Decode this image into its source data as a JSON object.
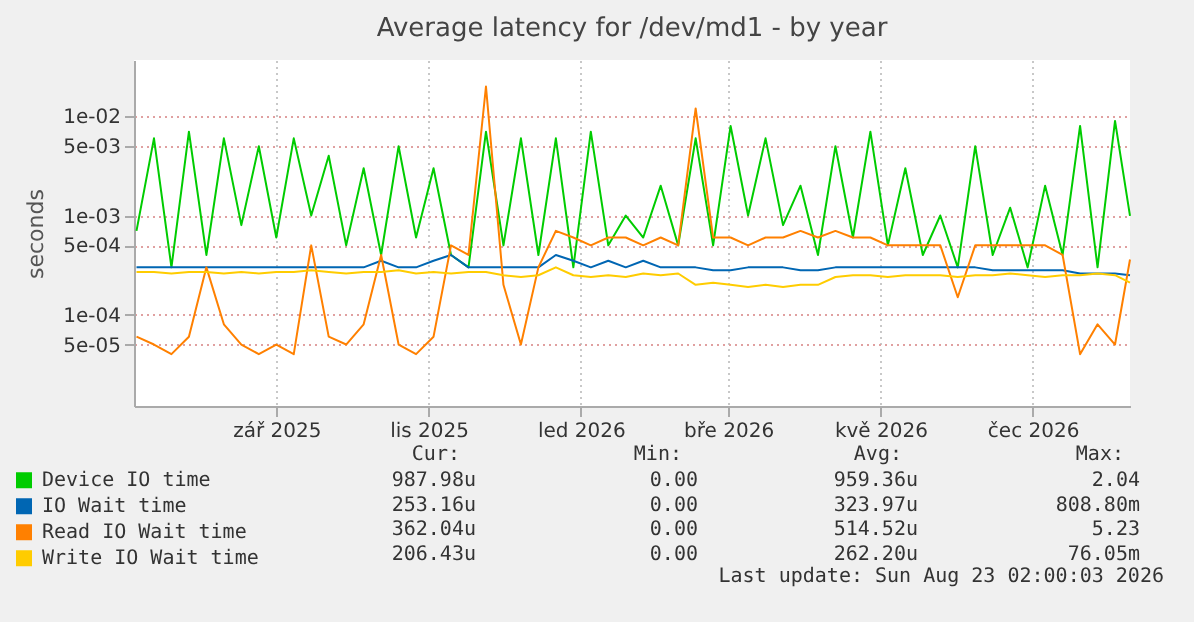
{
  "chart_data": {
    "type": "line",
    "title": "Average latency for /dev/md1 - by year",
    "ylabel": "seconds",
    "log": true,
    "grid": true,
    "legend": "bottom left",
    "xlim": [
      "2025-07-20",
      "2026-08-23"
    ],
    "xticks": [
      {
        "value": "2025-09-15",
        "label": "zář 2025"
      },
      {
        "value": "2025-11-15",
        "label": "lis 2025"
      },
      {
        "value": "2026-01-15",
        "label": "led 2026"
      },
      {
        "value": "2026-03-15",
        "label": "bře 2026"
      },
      {
        "value": "2026-05-15",
        "label": "kvě 2026"
      },
      {
        "value": "2026-07-15",
        "label": "čec 2026"
      }
    ],
    "ylim": [
      1.2e-05,
      0.037
    ],
    "yticks": [
      {
        "value": 5e-05,
        "label": "5e-05"
      },
      {
        "value": 0.0001,
        "label": "1e-04"
      },
      {
        "value": 0.0005,
        "label": "5e-04"
      },
      {
        "value": 0.001,
        "label": "1e-03"
      },
      {
        "value": 0.005,
        "label": "5e-03"
      },
      {
        "value": 0.01,
        "label": "1e-02"
      }
    ],
    "x": [
      "2025-07-21",
      "2025-07-28",
      "2025-08-04",
      "2025-08-11",
      "2025-08-18",
      "2025-08-25",
      "2025-09-01",
      "2025-09-08",
      "2025-09-15",
      "2025-09-22",
      "2025-09-29",
      "2025-10-06",
      "2025-10-13",
      "2025-10-20",
      "2025-10-27",
      "2025-11-03",
      "2025-11-10",
      "2025-11-17",
      "2025-11-24",
      "2025-12-01",
      "2025-12-08",
      "2025-12-15",
      "2025-12-22",
      "2025-12-29",
      "2026-01-05",
      "2026-01-12",
      "2026-01-19",
      "2026-01-26",
      "2026-02-02",
      "2026-02-09",
      "2026-02-16",
      "2026-02-23",
      "2026-03-02",
      "2026-03-09",
      "2026-03-16",
      "2026-03-23",
      "2026-03-30",
      "2026-04-06",
      "2026-04-13",
      "2026-04-20",
      "2026-04-27",
      "2026-05-04",
      "2026-05-11",
      "2026-05-18",
      "2026-05-25",
      "2026-06-01",
      "2026-06-08",
      "2026-06-15",
      "2026-06-22",
      "2026-06-29",
      "2026-07-06",
      "2026-07-13",
      "2026-07-20",
      "2026-07-27",
      "2026-08-03",
      "2026-08-10",
      "2026-08-17",
      "2026-08-23"
    ],
    "series": [
      {
        "name": "Device IO time",
        "color": "#00cc00",
        "values": [
          0.0007,
          0.006,
          0.0003,
          0.007,
          0.0004,
          0.006,
          0.0008,
          0.005,
          0.0006,
          0.006,
          0.001,
          0.004,
          0.0005,
          0.003,
          0.0004,
          0.005,
          0.0006,
          0.003,
          0.0004,
          0.0003,
          0.007,
          0.0005,
          0.006,
          0.0004,
          0.006,
          0.0003,
          0.007,
          0.0005,
          0.001,
          0.0006,
          0.002,
          0.0005,
          0.006,
          0.0005,
          0.008,
          0.001,
          0.006,
          0.0008,
          0.002,
          0.0004,
          0.005,
          0.0006,
          0.007,
          0.0005,
          0.003,
          0.0004,
          0.001,
          0.0003,
          0.005,
          0.0004,
          0.0012,
          0.0003,
          0.002,
          0.0004,
          0.008,
          0.0003,
          0.009,
          0.00099
        ]
      },
      {
        "name": "IO Wait time",
        "color": "#0066b3",
        "values": [
          0.0003,
          0.0003,
          0.0003,
          0.0003,
          0.0003,
          0.0003,
          0.0003,
          0.0003,
          0.0003,
          0.0003,
          0.0003,
          0.0003,
          0.0003,
          0.0003,
          0.00035,
          0.0003,
          0.0003,
          0.00035,
          0.0004,
          0.0003,
          0.0003,
          0.0003,
          0.0003,
          0.0003,
          0.0004,
          0.00035,
          0.0003,
          0.00035,
          0.0003,
          0.00035,
          0.0003,
          0.0003,
          0.0003,
          0.00028,
          0.00028,
          0.0003,
          0.0003,
          0.0003,
          0.00028,
          0.00028,
          0.0003,
          0.0003,
          0.0003,
          0.0003,
          0.0003,
          0.0003,
          0.0003,
          0.0003,
          0.0003,
          0.00028,
          0.00028,
          0.00028,
          0.00028,
          0.00028,
          0.00026,
          0.00026,
          0.00026,
          0.00025
        ]
      },
      {
        "name": "Read IO Wait time",
        "color": "#ff8000",
        "values": [
          6e-05,
          5e-05,
          4e-05,
          6e-05,
          0.0003,
          8e-05,
          5e-05,
          4e-05,
          5e-05,
          4e-05,
          0.0005,
          6e-05,
          5e-05,
          8e-05,
          0.0004,
          5e-05,
          4e-05,
          6e-05,
          0.0005,
          0.0004,
          0.02,
          0.0002,
          5e-05,
          0.0003,
          0.0007,
          0.0006,
          0.0005,
          0.0006,
          0.0006,
          0.0005,
          0.0006,
          0.0005,
          0.012,
          0.0006,
          0.0006,
          0.0005,
          0.0006,
          0.0006,
          0.0007,
          0.0006,
          0.0007,
          0.0006,
          0.0006,
          0.0005,
          0.0005,
          0.0005,
          0.0005,
          0.00015,
          0.0005,
          0.0005,
          0.0005,
          0.0005,
          0.0005,
          0.0004,
          4e-05,
          8e-05,
          5e-05,
          0.00036
        ]
      },
      {
        "name": "Write IO Wait time",
        "color": "#ffcc00",
        "values": [
          0.00027,
          0.00027,
          0.00026,
          0.00027,
          0.00027,
          0.00026,
          0.00027,
          0.00026,
          0.00027,
          0.00027,
          0.00028,
          0.00027,
          0.00026,
          0.00027,
          0.00027,
          0.00028,
          0.00026,
          0.00027,
          0.00026,
          0.00027,
          0.00027,
          0.00025,
          0.00024,
          0.00025,
          0.0003,
          0.00025,
          0.00024,
          0.00025,
          0.00024,
          0.00026,
          0.00025,
          0.00026,
          0.0002,
          0.00021,
          0.0002,
          0.00019,
          0.0002,
          0.00019,
          0.0002,
          0.0002,
          0.00024,
          0.00025,
          0.00025,
          0.00024,
          0.00025,
          0.00025,
          0.00025,
          0.00024,
          0.00025,
          0.00025,
          0.00026,
          0.00025,
          0.00024,
          0.00025,
          0.00025,
          0.00026,
          0.00025,
          0.00021
        ]
      }
    ],
    "annotations": [
      "Cur:",
      "Min:",
      "Avg:",
      "Max:",
      "987.98u",
      "0.00",
      "959.36u",
      "2.04",
      "253.16u",
      "0.00",
      "323.97u",
      "808.80m",
      "362.04u",
      "0.00",
      "514.52u",
      "5.23",
      "206.43u",
      "0.00",
      "262.20u",
      "76.05m",
      "Last update: Sun Aug 23 02:00:03 2026"
    ]
  }
}
